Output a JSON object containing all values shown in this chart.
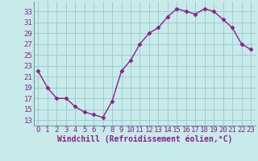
{
  "hours": [
    0,
    1,
    2,
    3,
    4,
    5,
    6,
    7,
    8,
    9,
    10,
    11,
    12,
    13,
    14,
    15,
    16,
    17,
    18,
    19,
    20,
    21,
    22,
    23
  ],
  "windchill": [
    22,
    19,
    17,
    17,
    15.5,
    14.5,
    14,
    13.5,
    16.5,
    22,
    24,
    27,
    29,
    30,
    32,
    33.5,
    33,
    32.5,
    33.5,
    33,
    31.5,
    30,
    27,
    26
  ],
  "line_color": "#882288",
  "marker": "D",
  "marker_size": 2.5,
  "bg_color": "#c8eaea",
  "grid_color": "#a0cccc",
  "xlabel": "Windchill (Refroidissement éolien,°C)",
  "yticks": [
    13,
    15,
    17,
    19,
    21,
    23,
    25,
    27,
    29,
    31,
    33
  ],
  "ylim": [
    12.0,
    34.8
  ],
  "xlim": [
    -0.5,
    23.5
  ],
  "tick_fontsize": 6.5,
  "xlabel_fontsize": 7.0
}
